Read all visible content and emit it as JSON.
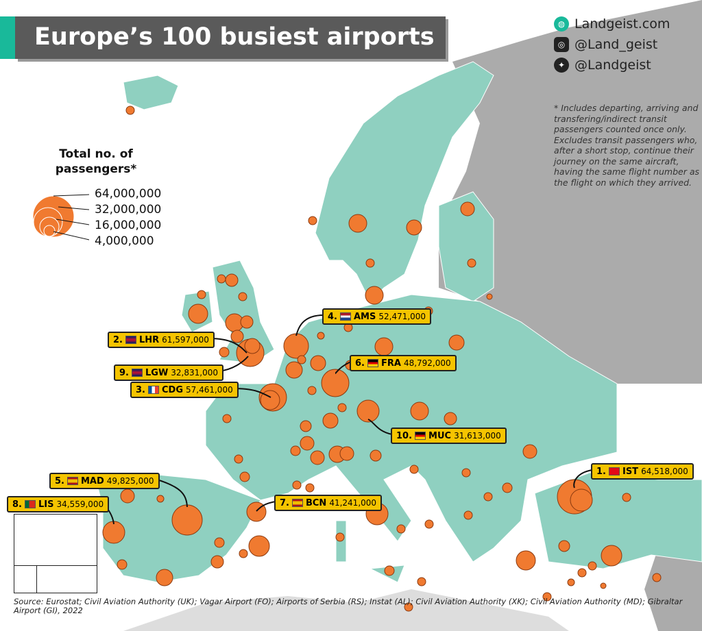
{
  "title": "Europe’s 100 busiest airports",
  "social": {
    "website": "Landgeist.com",
    "instagram": "@Land_geist",
    "twitter": "@Landgeist"
  },
  "footnote": "* Includes departing, arriving and transfering/indirect transit passengers counted once only. Excludes transit passengers who, after a short stop, continue their journey on the same aircraft, having the same flight number as the flight on which they arrived.",
  "legend": {
    "title": "Total no. of passengers*",
    "values": [
      "64,000,000",
      "32,000,000",
      "16,000,000",
      "4,000,000"
    ]
  },
  "top10": [
    {
      "rank": "1.",
      "code": "IST",
      "passengers": "64,518,000",
      "flag": "turkey"
    },
    {
      "rank": "2.",
      "code": "LHR",
      "passengers": "61,597,000",
      "flag": "uk"
    },
    {
      "rank": "3.",
      "code": "CDG",
      "passengers": "57,461,000",
      "flag": "france"
    },
    {
      "rank": "4.",
      "code": "AMS",
      "passengers": "52,471,000",
      "flag": "netherlands"
    },
    {
      "rank": "5.",
      "code": "MAD",
      "passengers": "49,825,000",
      "flag": "spain"
    },
    {
      "rank": "6.",
      "code": "FRA",
      "passengers": "48,792,000",
      "flag": "germany"
    },
    {
      "rank": "7.",
      "code": "BCN",
      "passengers": "41,241,000",
      "flag": "spain"
    },
    {
      "rank": "8.",
      "code": "LIS",
      "passengers": "34,559,000",
      "flag": "portugal"
    },
    {
      "rank": "9.",
      "code": "LGW",
      "passengers": "32,831,000",
      "flag": "uk"
    },
    {
      "rank": "10.",
      "code": "MUC",
      "passengers": "31,613,000",
      "flag": "germany"
    }
  ],
  "source": "Source: Eurostat; Civil Aviation Authority (UK); Vagar Airport (FO); Airports of Serbia (RS); Instat (AL); Civil Aviation Authority (XK); Civil Aviation Authority (MD); Gibraltar Airport (GI), 2022",
  "colors": {
    "land": "#8fd0c0",
    "outside": "#ababab",
    "bubble": "#f07a30",
    "label": "#f5c400",
    "accent": "#19b99a"
  }
}
